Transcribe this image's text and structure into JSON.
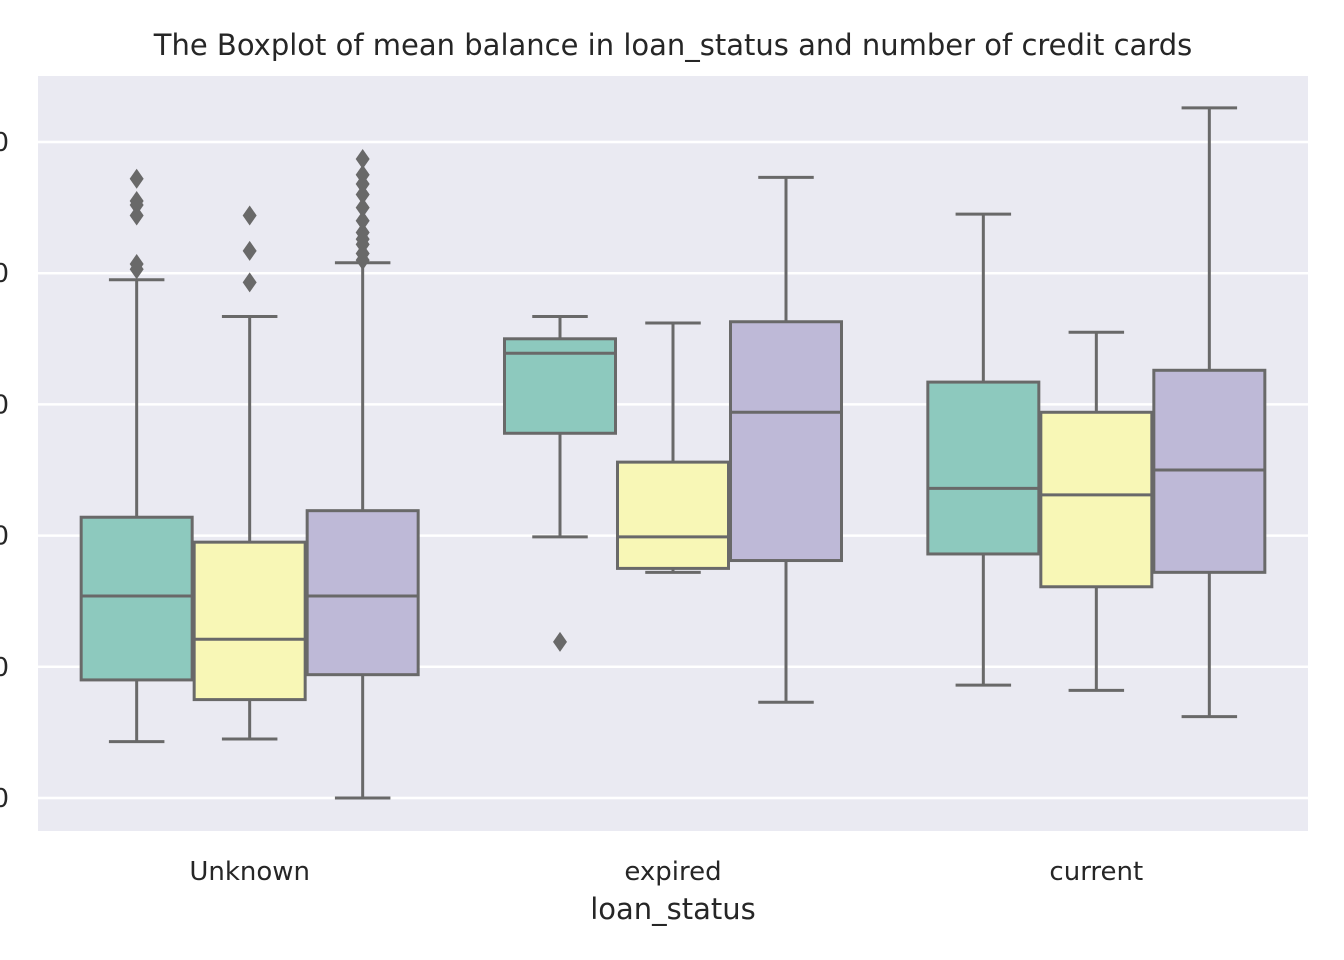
{
  "chart_data": {
    "type": "box",
    "title": "The Boxplot of mean balance in loan_status and number of credit cards",
    "xlabel": "loan_status",
    "ylabel": "",
    "categories": [
      "Unknown",
      "expired",
      "current"
    ],
    "ytick_values": [
      0,
      1,
      2,
      3,
      4,
      5
    ],
    "ytick_labels": [
      "0",
      "0",
      "0",
      "0",
      "0",
      "0"
    ],
    "ylim": [
      -0.25,
      5.5
    ],
    "grid": true,
    "legend": "none",
    "colors": {
      "background": "#EAEAF2",
      "grid": "#FFFFFF",
      "outline": "#696969",
      "series": [
        "#8DC9BE",
        "#F8F7B6",
        "#BEB9D7"
      ]
    },
    "groups": [
      {
        "category": "Unknown",
        "boxes": [
          {
            "whisker_low": 0.43,
            "q1": 0.9,
            "median": 1.54,
            "q3": 2.14,
            "whisker_high": 3.95,
            "outliers": [
              4.03,
              4.07,
              4.44,
              4.52,
              4.55,
              4.72
            ]
          },
          {
            "whisker_low": 0.45,
            "q1": 0.75,
            "median": 1.21,
            "q3": 1.95,
            "whisker_high": 3.67,
            "outliers": [
              3.93,
              4.17,
              4.44
            ]
          },
          {
            "whisker_low": 0.0,
            "q1": 0.94,
            "median": 1.54,
            "q3": 2.19,
            "whisker_high": 4.08,
            "outliers": [
              4.1,
              4.15,
              4.22,
              4.26,
              4.31,
              4.4,
              4.5,
              4.6,
              4.68,
              4.75,
              4.87
            ]
          }
        ]
      },
      {
        "category": "expired",
        "boxes": [
          {
            "whisker_low": 1.99,
            "q1": 2.78,
            "median": 3.39,
            "q3": 3.5,
            "whisker_high": 3.67,
            "outliers": [
              1.19
            ]
          },
          {
            "whisker_low": 1.72,
            "q1": 1.75,
            "median": 1.99,
            "q3": 2.56,
            "whisker_high": 3.62,
            "outliers": []
          },
          {
            "whisker_low": 0.73,
            "q1": 1.81,
            "median": 2.94,
            "q3": 3.63,
            "whisker_high": 4.73,
            "outliers": []
          }
        ]
      },
      {
        "category": "current",
        "boxes": [
          {
            "whisker_low": 0.86,
            "q1": 1.86,
            "median": 2.36,
            "q3": 3.17,
            "whisker_high": 4.45,
            "outliers": []
          },
          {
            "whisker_low": 0.82,
            "q1": 1.61,
            "median": 2.31,
            "q3": 2.94,
            "whisker_high": 3.55,
            "outliers": []
          },
          {
            "whisker_low": 0.62,
            "q1": 1.72,
            "median": 2.5,
            "q3": 3.26,
            "whisker_high": 5.26,
            "outliers": []
          }
        ]
      }
    ]
  }
}
